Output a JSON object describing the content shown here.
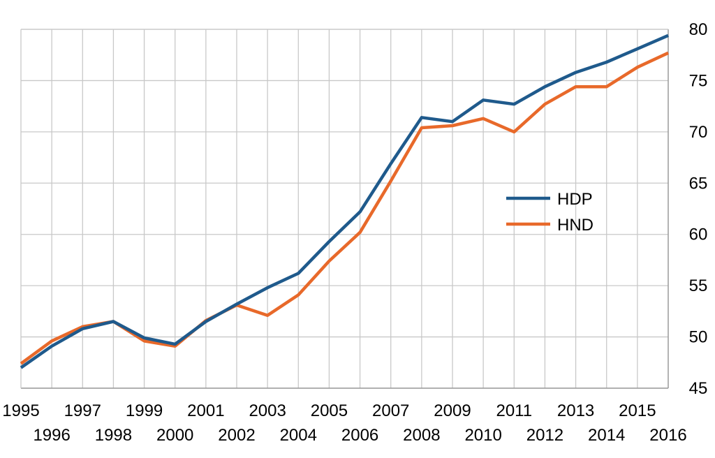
{
  "chart_data": {
    "type": "line",
    "title": "",
    "xlabel": "",
    "ylabel": "",
    "x": [
      "1995",
      "1996",
      "1997",
      "1998",
      "1999",
      "2000",
      "2001",
      "2002",
      "2003",
      "2004",
      "2005",
      "2006",
      "2007",
      "2008",
      "2009",
      "2010",
      "2011",
      "2012",
      "2013",
      "2014",
      "2015",
      "2016"
    ],
    "ylim": [
      45,
      80
    ],
    "yticks": [
      "45",
      "50",
      "55",
      "60",
      "65",
      "70",
      "75",
      "80"
    ],
    "y_axis_position": "right",
    "grid": true,
    "legend_position": "center-right",
    "series": [
      {
        "name": "HDP",
        "color": "#1f5a8c",
        "values": [
          47.0,
          49.1,
          50.8,
          51.5,
          49.9,
          49.3,
          51.5,
          53.2,
          54.8,
          56.2,
          59.3,
          62.2,
          66.9,
          71.4,
          71.0,
          73.1,
          72.7,
          74.4,
          75.8,
          76.8,
          78.1,
          79.4
        ]
      },
      {
        "name": "HND",
        "color": "#e8692a",
        "values": [
          47.4,
          49.6,
          51.0,
          51.5,
          49.6,
          49.1,
          51.6,
          53.1,
          52.1,
          54.1,
          57.4,
          60.2,
          65.2,
          70.4,
          70.6,
          71.3,
          70.0,
          72.7,
          74.4,
          74.4,
          76.3,
          77.7
        ]
      }
    ]
  }
}
